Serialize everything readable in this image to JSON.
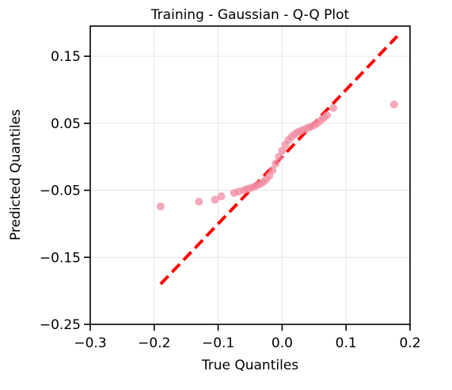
{
  "chart_data": {
    "type": "scatter",
    "title": "Training - Gaussian - Q-Q Plot",
    "xlabel": "True Quantiles",
    "ylabel": "Predicted Quantiles",
    "xlim": [
      -0.3,
      0.2
    ],
    "ylim": [
      -0.25,
      0.195
    ],
    "xticks": [
      -0.3,
      -0.2,
      -0.1,
      0.0,
      0.1,
      0.2
    ],
    "xtick_labels": [
      "−0.3",
      "−0.2",
      "−0.1",
      "0.0",
      "0.1",
      "0.2"
    ],
    "yticks": [
      -0.25,
      -0.15,
      -0.05,
      0.05,
      0.15
    ],
    "ytick_labels": [
      "−0.25",
      "−0.15",
      "−0.05",
      "0.05",
      "0.15"
    ],
    "grid": true,
    "point_color": "#f08aa0",
    "line_color": "#ff0000",
    "reference_line": {
      "x": [
        -0.19,
        0.18
      ],
      "y": [
        -0.19,
        0.18
      ]
    },
    "points": {
      "x": [
        -0.19,
        -0.13,
        -0.105,
        -0.095,
        -0.075,
        -0.068,
        -0.06,
        -0.055,
        -0.05,
        -0.045,
        -0.04,
        -0.035,
        -0.03,
        -0.025,
        -0.02,
        -0.015,
        -0.01,
        -0.005,
        0.0,
        0.005,
        0.01,
        0.015,
        0.02,
        0.025,
        0.03,
        0.035,
        0.04,
        0.045,
        0.05,
        0.055,
        0.06,
        0.065,
        0.07,
        0.08,
        0.175
      ],
      "y": [
        -0.074,
        -0.067,
        -0.064,
        -0.059,
        -0.054,
        -0.052,
        -0.05,
        -0.048,
        -0.047,
        -0.045,
        -0.043,
        -0.041,
        -0.038,
        -0.034,
        -0.028,
        -0.02,
        -0.01,
        0.0,
        0.009,
        0.018,
        0.025,
        0.03,
        0.034,
        0.037,
        0.039,
        0.041,
        0.043,
        0.045,
        0.047,
        0.05,
        0.054,
        0.058,
        0.062,
        0.073,
        0.078
      ]
    }
  }
}
